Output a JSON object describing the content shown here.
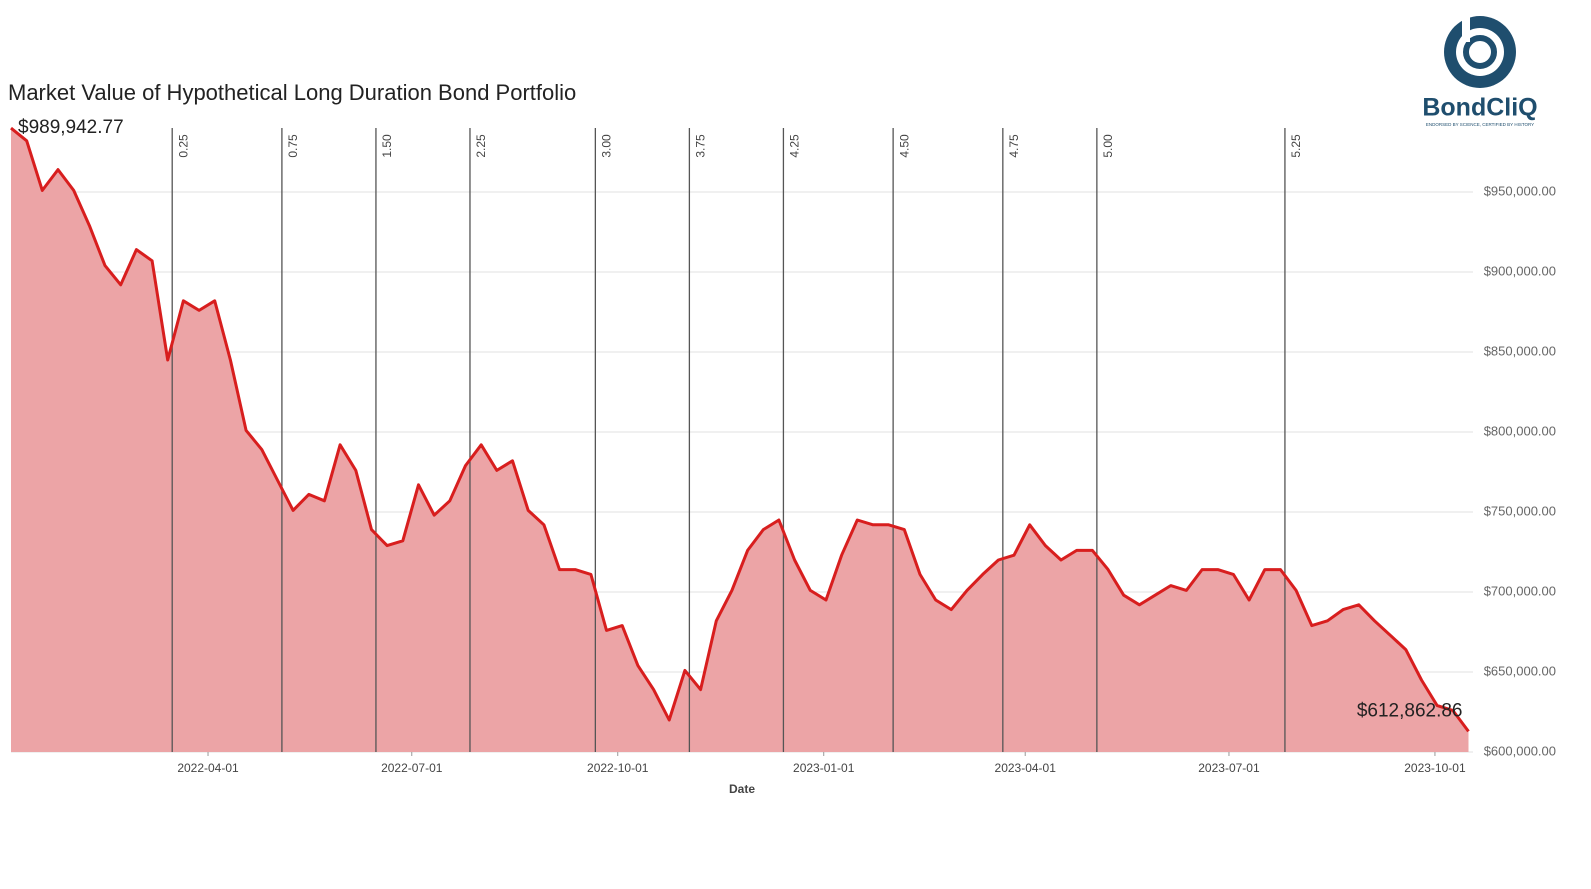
{
  "logo": {
    "name": "BondCliQ",
    "tagline": "ENDORSED BY SCIENCE, CERTIFIED BY HISTORY"
  },
  "chart_data": {
    "type": "area",
    "title": "Market Value of Hypothetical Long Duration Bond Portfolio",
    "x_label": "Date",
    "x": [
      "2022-01-03",
      "2022-01-10",
      "2022-01-17",
      "2022-01-24",
      "2022-01-31",
      "2022-02-07",
      "2022-02-14",
      "2022-02-21",
      "2022-02-28",
      "2022-03-07",
      "2022-03-14",
      "2022-03-21",
      "2022-03-28",
      "2022-04-04",
      "2022-04-11",
      "2022-04-18",
      "2022-04-25",
      "2022-05-02",
      "2022-05-09",
      "2022-05-16",
      "2022-05-23",
      "2022-05-30",
      "2022-06-06",
      "2022-06-13",
      "2022-06-20",
      "2022-06-27",
      "2022-07-04",
      "2022-07-11",
      "2022-07-18",
      "2022-07-25",
      "2022-08-01",
      "2022-08-08",
      "2022-08-15",
      "2022-08-22",
      "2022-08-29",
      "2022-09-05",
      "2022-09-12",
      "2022-09-19",
      "2022-09-26",
      "2022-10-03",
      "2022-10-10",
      "2022-10-17",
      "2022-10-24",
      "2022-10-31",
      "2022-11-07",
      "2022-11-14",
      "2022-11-21",
      "2022-11-28",
      "2022-12-05",
      "2022-12-12",
      "2022-12-19",
      "2022-12-26",
      "2023-01-02",
      "2023-01-09",
      "2023-01-16",
      "2023-01-23",
      "2023-01-30",
      "2023-02-06",
      "2023-02-13",
      "2023-02-20",
      "2023-02-27",
      "2023-03-06",
      "2023-03-13",
      "2023-03-20",
      "2023-03-27",
      "2023-04-03",
      "2023-04-10",
      "2023-04-17",
      "2023-04-24",
      "2023-05-01",
      "2023-05-08",
      "2023-05-15",
      "2023-05-22",
      "2023-05-29",
      "2023-06-05",
      "2023-06-12",
      "2023-06-19",
      "2023-06-26",
      "2023-07-03",
      "2023-07-10",
      "2023-07-17",
      "2023-07-24",
      "2023-07-31",
      "2023-08-07",
      "2023-08-14",
      "2023-08-21",
      "2023-08-28",
      "2023-09-04",
      "2023-09-11",
      "2023-09-18",
      "2023-09-25",
      "2023-10-02",
      "2023-10-09",
      "2023-10-16"
    ],
    "values": [
      989942.77,
      982000,
      951000,
      964000,
      951000,
      929000,
      904000,
      892000,
      914000,
      907000,
      845000,
      882000,
      876000,
      882000,
      845000,
      801000,
      789000,
      770000,
      751000,
      761000,
      757000,
      792000,
      776000,
      739000,
      729000,
      732000,
      767000,
      748000,
      757000,
      779000,
      792000,
      776000,
      782000,
      751000,
      742000,
      714000,
      714000,
      711000,
      676000,
      679000,
      654000,
      639000,
      620000,
      651000,
      639000,
      682000,
      701000,
      726000,
      739000,
      745000,
      720000,
      701000,
      695000,
      723000,
      745000,
      742000,
      742000,
      739000,
      711000,
      695000,
      689000,
      701000,
      711000,
      720000,
      723000,
      742000,
      729000,
      720000,
      726000,
      726000,
      714000,
      698000,
      692000,
      698000,
      704000,
      701000,
      714000,
      714000,
      711000,
      695000,
      714000,
      714000,
      701000,
      679000,
      682000,
      689000,
      692000,
      682000,
      673000,
      664000,
      645000,
      629000,
      626000,
      612862.86
    ],
    "value_labels": [
      "$989,942.77",
      null,
      null,
      null,
      null,
      null,
      null,
      null,
      null,
      null,
      null,
      null,
      null,
      null,
      null,
      null,
      null,
      null,
      null,
      null,
      null,
      null,
      null,
      null,
      null,
      null,
      null,
      null,
      null,
      null,
      null,
      null,
      null,
      null,
      null,
      null,
      null,
      null,
      null,
      null,
      null,
      null,
      null,
      null,
      null,
      null,
      null,
      null,
      null,
      null,
      null,
      null,
      null,
      null,
      null,
      null,
      null,
      null,
      null,
      null,
      null,
      null,
      null,
      null,
      null,
      null,
      null,
      null,
      null,
      null,
      null,
      null,
      null,
      null,
      null,
      null,
      null,
      null,
      null,
      null,
      null,
      null,
      null,
      null,
      null,
      null,
      null,
      null,
      null,
      null,
      null,
      null,
      null,
      "$612,862.86"
    ],
    "line_color": "#d81e1e",
    "fill_color": "#eca4a6",
    "xlim": [
      "2022-01-03",
      "2023-10-18"
    ],
    "xticks": [
      "2022-04-01",
      "2022-07-01",
      "2022-10-01",
      "2023-01-01",
      "2023-04-01",
      "2023-07-01",
      "2023-10-01"
    ],
    "ylim": [
      600000,
      990000
    ],
    "yticks": [
      {
        "value": 600000,
        "label": "$600,000.00"
      },
      {
        "value": 650000,
        "label": "$650,000.00"
      },
      {
        "value": 700000,
        "label": "$700,000.00"
      },
      {
        "value": 750000,
        "label": "$750,000.00"
      },
      {
        "value": 800000,
        "label": "$800,000.00"
      },
      {
        "value": 850000,
        "label": "$850,000.00"
      },
      {
        "value": 900000,
        "label": "$900,000.00"
      },
      {
        "value": 950000,
        "label": "$950,000.00"
      }
    ],
    "grid": true,
    "events": [
      {
        "date": "2022-03-16",
        "label": "0.25"
      },
      {
        "date": "2022-05-04",
        "label": "0.75"
      },
      {
        "date": "2022-06-15",
        "label": "1.50"
      },
      {
        "date": "2022-07-27",
        "label": "2.25"
      },
      {
        "date": "2022-09-21",
        "label": "3.00"
      },
      {
        "date": "2022-11-02",
        "label": "3.75"
      },
      {
        "date": "2022-12-14",
        "label": "4.25"
      },
      {
        "date": "2023-02-01",
        "label": "4.50"
      },
      {
        "date": "2023-03-22",
        "label": "4.75"
      },
      {
        "date": "2023-05-03",
        "label": "5.00"
      },
      {
        "date": "2023-07-26",
        "label": "5.25"
      }
    ]
  }
}
